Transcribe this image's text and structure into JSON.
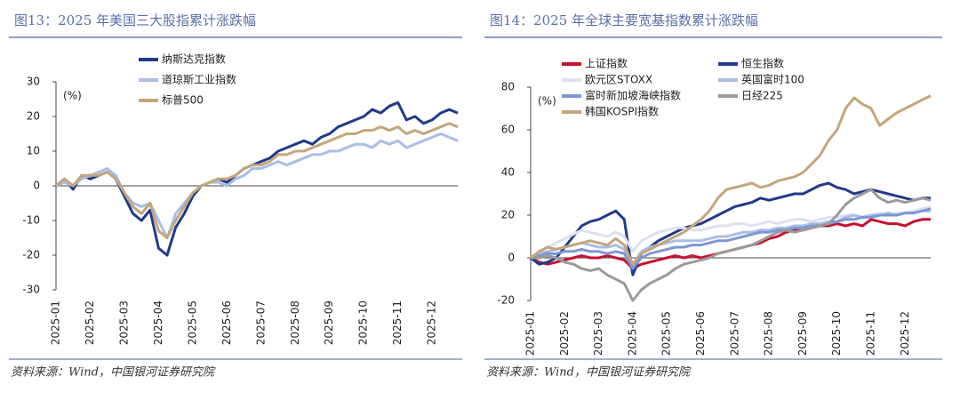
{
  "chart_data": [
    {
      "type": "line",
      "title": "图13：2025 年美国三大股指累计涨跌幅",
      "source": "资料来源：Wind，中国银河证券研究院",
      "y_unit_label": "(%)",
      "categories": [
        "2025-01",
        null,
        null,
        null,
        "2025-02",
        null,
        null,
        null,
        "2025-03",
        null,
        null,
        null,
        "2025-04",
        null,
        null,
        null,
        "2025-05",
        null,
        null,
        null,
        "2025-06",
        null,
        null,
        null,
        "2025-07",
        null,
        null,
        null,
        "2025-08",
        null,
        null,
        null,
        "2025-09",
        null,
        null,
        null,
        "2025-10",
        null,
        null,
        null,
        "2025-11",
        null,
        null,
        null,
        "2025-12",
        null,
        null,
        null
      ],
      "ylim": [
        -30,
        30
      ],
      "yticks": [
        -30,
        -20,
        -10,
        0,
        10,
        20,
        30
      ],
      "series": [
        {
          "name": "纳斯达克指数",
          "color": "#1f3a8a",
          "values": [
            0,
            2,
            -1,
            3,
            2,
            3,
            4,
            2,
            -3,
            -8,
            -10,
            -7,
            -18,
            -20,
            -12,
            -8,
            -3,
            0,
            1,
            2,
            1,
            3,
            5,
            6,
            7,
            8,
            10,
            11,
            12,
            13,
            12,
            14,
            15,
            17,
            18,
            19,
            20,
            22,
            21,
            23,
            24,
            19,
            20,
            18,
            19,
            21,
            22,
            21
          ]
        },
        {
          "name": "道琼斯工业指数",
          "color": "#a9bde6",
          "values": [
            0,
            1,
            0,
            2,
            3,
            4,
            5,
            3,
            -2,
            -5,
            -6,
            -5,
            -10,
            -15,
            -8,
            -5,
            -2,
            0,
            1,
            1,
            0,
            2,
            3,
            5,
            5,
            6,
            7,
            6,
            7,
            8,
            9,
            9,
            10,
            10,
            11,
            12,
            12,
            11,
            13,
            12,
            13,
            11,
            12,
            13,
            14,
            15,
            14,
            13
          ]
        },
        {
          "name": "标普500",
          "color": "#c4a57a",
          "values": [
            0,
            2,
            0,
            3,
            3,
            3,
            4,
            2,
            -2,
            -6,
            -8,
            -5,
            -13,
            -15,
            -10,
            -6,
            -2,
            0,
            1,
            2,
            2,
            3,
            5,
            6,
            6,
            7,
            9,
            9,
            10,
            10,
            11,
            12,
            13,
            14,
            15,
            15,
            16,
            16,
            17,
            16,
            17,
            15,
            16,
            15,
            16,
            17,
            18,
            17
          ]
        }
      ]
    },
    {
      "type": "line",
      "title": "图14：2025 年全球主要宽基指数累计涨跌幅",
      "source": "资料来源：Wind，中国银河证券研究院",
      "y_unit_label": "(%)",
      "categories": [
        "2025-01",
        null,
        null,
        null,
        "2025-02",
        null,
        null,
        null,
        "2025-03",
        null,
        null,
        null,
        "2025-04",
        null,
        null,
        null,
        "2025-05",
        null,
        null,
        null,
        "2025-06",
        null,
        null,
        null,
        "2025-07",
        null,
        null,
        null,
        "2025-08",
        null,
        null,
        null,
        "2025-09",
        null,
        null,
        null,
        "2025-10",
        null,
        null,
        null,
        "2025-11",
        null,
        null,
        null,
        "2025-12",
        null,
        null,
        null
      ],
      "ylim": [
        -20,
        80
      ],
      "yticks": [
        -20,
        0,
        20,
        40,
        60,
        80
      ],
      "series": [
        {
          "name": "上证指数",
          "color": "#c8102e",
          "values": [
            0,
            -2,
            -3,
            -2,
            -1,
            0,
            1,
            0,
            0,
            1,
            0,
            -1,
            -5,
            -3,
            -2,
            -1,
            0,
            1,
            0,
            1,
            0,
            1,
            2,
            3,
            4,
            5,
            6,
            7,
            9,
            10,
            12,
            13,
            13,
            14,
            15,
            15,
            16,
            15,
            16,
            15,
            18,
            17,
            16,
            16,
            15,
            17,
            18,
            18
          ]
        },
        {
          "name": "恒生指数",
          "color": "#1f3a8a",
          "values": [
            0,
            -3,
            -2,
            0,
            5,
            10,
            15,
            17,
            18,
            20,
            22,
            18,
            -8,
            2,
            5,
            8,
            10,
            12,
            14,
            15,
            16,
            18,
            20,
            22,
            24,
            25,
            26,
            28,
            27,
            28,
            29,
            30,
            30,
            32,
            34,
            35,
            33,
            32,
            30,
            31,
            32,
            31,
            30,
            29,
            28,
            27,
            28,
            28
          ]
        },
        {
          "name": "欧元区STOXX",
          "color": "#dde0f0",
          "values": [
            0,
            3,
            5,
            7,
            9,
            11,
            13,
            12,
            11,
            10,
            12,
            10,
            3,
            8,
            10,
            12,
            13,
            14,
            14,
            13,
            13,
            14,
            15,
            15,
            16,
            16,
            15,
            16,
            17,
            16,
            17,
            18,
            18,
            17,
            18,
            19,
            19,
            20,
            20,
            19,
            20,
            21,
            20,
            21,
            21,
            22,
            23,
            24
          ]
        },
        {
          "name": "英国富时100",
          "color": "#a9bde6",
          "values": [
            0,
            2,
            3,
            4,
            5,
            6,
            7,
            6,
            5,
            5,
            6,
            4,
            -3,
            3,
            5,
            6,
            7,
            8,
            8,
            8,
            8,
            9,
            10,
            10,
            11,
            12,
            12,
            13,
            13,
            14,
            14,
            15,
            15,
            16,
            16,
            17,
            17,
            19,
            20,
            19,
            20,
            20,
            21,
            20,
            21,
            21,
            22,
            22
          ]
        },
        {
          "name": "富时新加坡海峡指数",
          "color": "#7d96d6",
          "values": [
            0,
            1,
            2,
            2,
            3,
            3,
            4,
            3,
            3,
            2,
            3,
            2,
            -5,
            0,
            2,
            3,
            4,
            5,
            5,
            6,
            6,
            7,
            8,
            8,
            9,
            10,
            11,
            12,
            12,
            13,
            13,
            14,
            14,
            15,
            15,
            16,
            17,
            18,
            18,
            19,
            19,
            20,
            20,
            20,
            21,
            21,
            22,
            23
          ]
        },
        {
          "name": "日经225",
          "color": "#9a9a9a",
          "values": [
            0,
            0,
            1,
            0,
            -2,
            -3,
            -5,
            -6,
            -5,
            -8,
            -10,
            -12,
            -20,
            -15,
            -12,
            -10,
            -8,
            -5,
            -3,
            -2,
            -1,
            0,
            2,
            3,
            4,
            5,
            6,
            8,
            10,
            12,
            13,
            12,
            13,
            14,
            15,
            16,
            20,
            25,
            28,
            30,
            32,
            28,
            26,
            27,
            26,
            27,
            28,
            27
          ]
        },
        {
          "name": "韩国KOSPI指数",
          "color": "#c4a57a",
          "values": [
            0,
            3,
            5,
            4,
            5,
            6,
            7,
            8,
            7,
            6,
            9,
            6,
            -3,
            2,
            4,
            6,
            8,
            10,
            12,
            15,
            18,
            22,
            28,
            32,
            33,
            34,
            35,
            33,
            34,
            36,
            37,
            38,
            40,
            44,
            48,
            55,
            60,
            70,
            75,
            72,
            70,
            62,
            65,
            68,
            70,
            72,
            74,
            76
          ]
        }
      ]
    }
  ]
}
